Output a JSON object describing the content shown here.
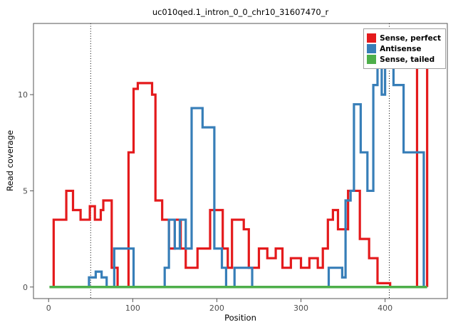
{
  "chart_data": {
    "type": "line",
    "title": "uc010qed.1_intron_0_0_chr10_31607470_r",
    "xlabel": "Position",
    "ylabel": "Read coverage",
    "xlim": [
      -18,
      474
    ],
    "ylim": [
      -0.6,
      13.7
    ],
    "x_ticks": [
      0,
      100,
      200,
      300,
      400
    ],
    "y_ticks": [
      0,
      5,
      10
    ],
    "grid": false,
    "legend_position": "top-right",
    "vlines": [
      50,
      405
    ],
    "axis_color": "#555555",
    "tick_label_color": "#4d4d4d",
    "series": [
      {
        "name": "Sense, perfect",
        "color": "#E41A1C",
        "width": 3.2,
        "steps": [
          [
            2,
            0
          ],
          [
            6,
            3.5
          ],
          [
            19,
            3.5
          ],
          [
            21,
            5
          ],
          [
            27,
            5
          ],
          [
            29,
            4
          ],
          [
            36,
            4
          ],
          [
            38,
            3.5
          ],
          [
            47,
            3.5
          ],
          [
            49,
            4.2
          ],
          [
            53,
            4.2
          ],
          [
            55,
            3.5
          ],
          [
            60,
            3.5
          ],
          [
            62,
            4
          ],
          [
            65,
            4.5
          ],
          [
            73,
            4.5
          ],
          [
            75,
            1
          ],
          [
            80,
            1
          ],
          [
            82,
            0
          ],
          [
            93,
            0
          ],
          [
            95,
            7
          ],
          [
            99,
            7
          ],
          [
            101,
            10.3
          ],
          [
            106,
            10.6
          ],
          [
            121,
            10.6
          ],
          [
            123,
            10
          ],
          [
            125,
            10
          ],
          [
            127,
            4.5
          ],
          [
            133,
            4.5
          ],
          [
            135,
            3.5
          ],
          [
            141,
            3.5
          ],
          [
            143,
            2
          ],
          [
            148,
            2
          ],
          [
            150,
            3.5
          ],
          [
            155,
            3.5
          ],
          [
            157,
            2
          ],
          [
            161,
            2
          ],
          [
            163,
            1
          ],
          [
            175,
            1
          ],
          [
            177,
            2
          ],
          [
            190,
            2
          ],
          [
            192,
            4
          ],
          [
            205,
            4
          ],
          [
            207,
            2
          ],
          [
            211,
            2
          ],
          [
            213,
            1
          ],
          [
            216,
            1
          ],
          [
            218,
            3.5
          ],
          [
            230,
            3.5
          ],
          [
            232,
            3
          ],
          [
            236,
            3
          ],
          [
            238,
            1
          ],
          [
            248,
            1
          ],
          [
            250,
            2
          ],
          [
            258,
            2
          ],
          [
            260,
            1.5
          ],
          [
            268,
            1.5
          ],
          [
            270,
            2
          ],
          [
            276,
            2
          ],
          [
            278,
            1
          ],
          [
            286,
            1
          ],
          [
            288,
            1.5
          ],
          [
            298,
            1.5
          ],
          [
            300,
            1
          ],
          [
            308,
            1
          ],
          [
            310,
            1.5
          ],
          [
            318,
            1.5
          ],
          [
            320,
            1
          ],
          [
            324,
            1
          ],
          [
            326,
            2
          ],
          [
            330,
            2
          ],
          [
            332,
            3.5
          ],
          [
            336,
            3.5
          ],
          [
            338,
            4
          ],
          [
            342,
            4
          ],
          [
            344,
            3
          ],
          [
            354,
            3
          ],
          [
            356,
            5
          ],
          [
            368,
            5
          ],
          [
            370,
            2.5
          ],
          [
            379,
            2.5
          ],
          [
            381,
            1.5
          ],
          [
            389,
            1.5
          ],
          [
            391,
            0.2
          ],
          [
            404,
            0.2
          ],
          [
            406,
            0
          ],
          [
            436,
            0
          ],
          [
            438,
            11.5
          ],
          [
            449,
            11.5
          ],
          [
            450,
            0
          ]
        ]
      },
      {
        "name": "Antisense",
        "color": "#377EB8",
        "width": 3.2,
        "steps": [
          [
            2,
            0
          ],
          [
            46,
            0
          ],
          [
            48,
            0.5
          ],
          [
            54,
            0.5
          ],
          [
            56,
            0.8
          ],
          [
            61,
            0.8
          ],
          [
            63,
            0.5
          ],
          [
            67,
            0.5
          ],
          [
            69,
            0
          ],
          [
            76,
            0
          ],
          [
            78,
            2
          ],
          [
            99,
            2
          ],
          [
            101,
            0
          ],
          [
            136,
            0
          ],
          [
            138,
            1
          ],
          [
            141,
            1
          ],
          [
            143,
            3.5
          ],
          [
            148,
            3.5
          ],
          [
            150,
            2
          ],
          [
            154,
            2
          ],
          [
            156,
            3.5
          ],
          [
            161,
            3.5
          ],
          [
            163,
            2
          ],
          [
            168,
            2
          ],
          [
            170,
            9.3
          ],
          [
            181,
            9.3
          ],
          [
            183,
            8.3
          ],
          [
            195,
            8.3
          ],
          [
            197,
            2
          ],
          [
            204,
            2
          ],
          [
            206,
            1
          ],
          [
            209,
            1
          ],
          [
            211,
            0
          ],
          [
            219,
            0
          ],
          [
            221,
            1
          ],
          [
            240,
            1
          ],
          [
            242,
            0
          ],
          [
            331,
            0
          ],
          [
            333,
            1
          ],
          [
            347,
            1
          ],
          [
            349,
            0.5
          ],
          [
            351,
            0.5
          ],
          [
            353,
            4.5
          ],
          [
            357,
            4.5
          ],
          [
            359,
            5
          ],
          [
            361,
            5
          ],
          [
            363,
            9.5
          ],
          [
            369,
            9.5
          ],
          [
            371,
            7
          ],
          [
            377,
            7
          ],
          [
            379,
            5
          ],
          [
            384,
            5
          ],
          [
            386,
            10.5
          ],
          [
            389,
            10.5
          ],
          [
            391,
            11.7
          ],
          [
            394,
            11.7
          ],
          [
            396,
            10
          ],
          [
            398,
            10
          ],
          [
            400,
            11.7
          ],
          [
            408,
            11.7
          ],
          [
            410,
            10.5
          ],
          [
            420,
            10.5
          ],
          [
            422,
            7
          ],
          [
            444,
            7
          ],
          [
            446,
            0
          ]
        ]
      },
      {
        "name": "Sense, tailed",
        "color": "#4DAF4A",
        "width": 3.6,
        "steps": [
          [
            1,
            0
          ],
          [
            450,
            0
          ]
        ]
      }
    ]
  }
}
